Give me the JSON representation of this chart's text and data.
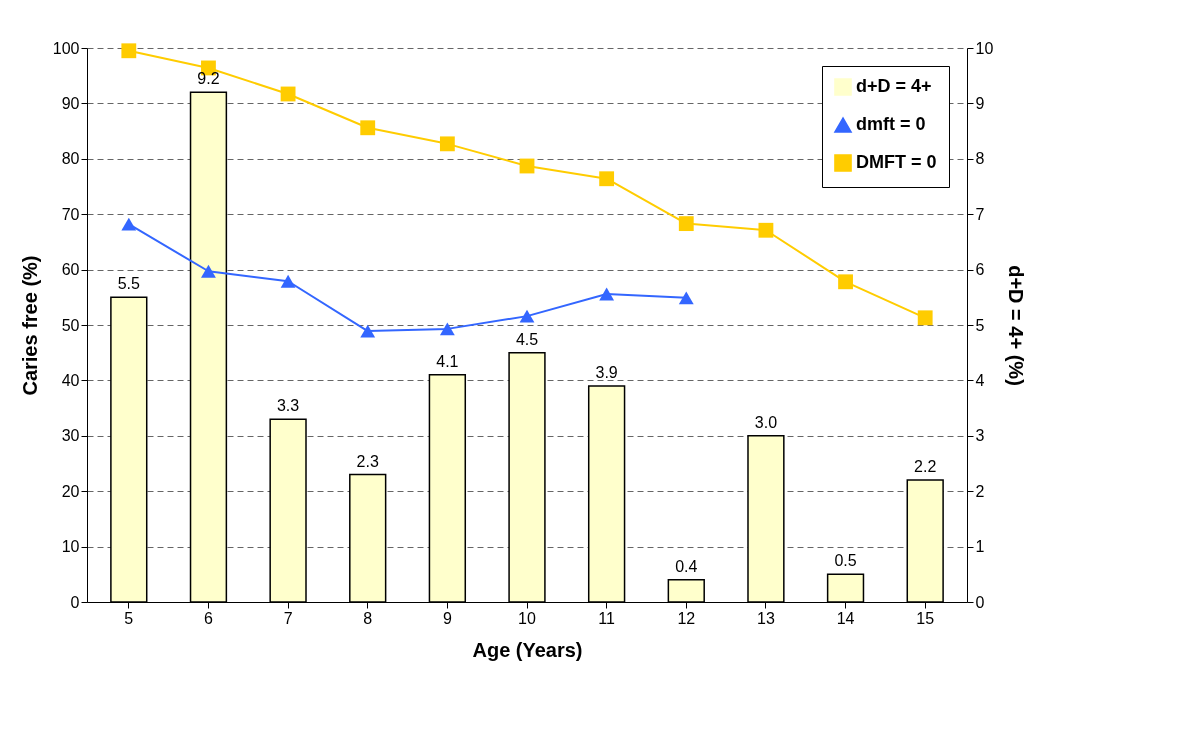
{
  "chart_data": {
    "type": "bar",
    "xlabel": "Age (Years)",
    "ylabel": "Caries free (%)",
    "y2label": "d+D = 4+ (%)",
    "categories": [
      "5",
      "6",
      "7",
      "8",
      "9",
      "10",
      "11",
      "12",
      "13",
      "14",
      "15"
    ],
    "series": [
      {
        "name": "d+D = 4+",
        "axis": "y2",
        "color": "#ffffcc",
        "values": [
          5.5,
          9.2,
          3.3,
          2.3,
          4.1,
          4.5,
          3.9,
          0.4,
          3.0,
          0.5,
          2.2
        ],
        "value_labels": [
          "5.5",
          "9.2",
          "3.3",
          "2.3",
          "4.1",
          "4.5",
          "3.9",
          "0.4",
          "3.0",
          "0.5",
          "2.2"
        ]
      },
      {
        "name": "dmft = 0",
        "type": "line",
        "marker": "triangle",
        "color": "#3366ff",
        "values": [
          68.2,
          59.7,
          57.9,
          48.9,
          49.3,
          51.6,
          55.6,
          54.9,
          null,
          null,
          null
        ]
      },
      {
        "name": "DMFT = 0",
        "type": "line",
        "marker": "square",
        "color": "#ffcc00",
        "values": [
          99.5,
          96.4,
          91.7,
          85.6,
          82.7,
          78.7,
          76.4,
          68.3,
          67.1,
          57.8,
          51.3
        ]
      }
    ],
    "ylim": [
      0,
      100
    ],
    "yticks": [
      0,
      10,
      20,
      30,
      40,
      50,
      60,
      70,
      80,
      90,
      100
    ],
    "y2lim": [
      0,
      10
    ],
    "y2ticks": [
      0,
      1,
      2,
      3,
      4,
      5,
      6,
      7,
      8,
      9,
      10
    ],
    "grid": "y",
    "legend": "top right"
  }
}
